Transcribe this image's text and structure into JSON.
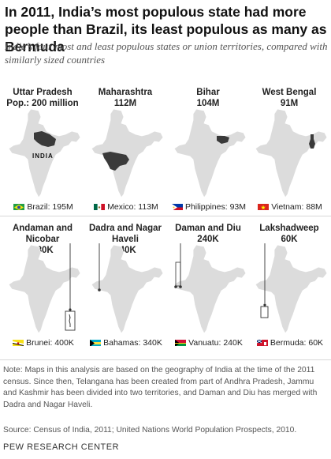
{
  "title": "In 2011, India’s most populous state had more people than Brazil, its least populous as many as Bermuda",
  "subtitle": "India’s four most and least populous states or union territories, compared with similarly sized countries",
  "map_country_label": "INDIA",
  "panels": [
    {
      "name": "Uttar Pradesh",
      "pop": "Pop.: 200 million",
      "country": "Brazil",
      "country_pop": "195M",
      "flag": "brazil"
    },
    {
      "name": "Maharashtra",
      "pop": "112M",
      "country": "Mexico",
      "country_pop": "113M",
      "flag": "mexico"
    },
    {
      "name": "Bihar",
      "pop": "104M",
      "country": "Philippines",
      "country_pop": "93M",
      "flag": "philippines"
    },
    {
      "name": "West Bengal",
      "pop": "91M",
      "country": "Vietnam",
      "country_pop": "88M",
      "flag": "vietnam"
    },
    {
      "name": "Andaman and Nicobar",
      "pop": "380K",
      "country": "Brunei",
      "country_pop": "400K",
      "flag": "brunei"
    },
    {
      "name": "Dadra and Nagar Haveli",
      "pop": "340K",
      "country": "Bahamas",
      "country_pop": "340K",
      "flag": "bahamas"
    },
    {
      "name": "Daman and Diu",
      "pop": "240K",
      "country": "Vanuatu",
      "country_pop": "240K",
      "flag": "vanuatu"
    },
    {
      "name": "Lakshadweep",
      "pop": "60K",
      "country": "Bermuda",
      "country_pop": "60K",
      "flag": "bermuda"
    }
  ],
  "note": "Note: Maps in this analysis are based on the geography of India at the time of the 2011 census. Since then, Telangana has been created from part of Andhra Pradesh, Jammu and Kashmir has been divided into two territories, and Daman and Diu has merged with Dadra and Nagar Haveli.",
  "source": "Source: Census of India, 2011; United Nations World Population Prospects, 2010.",
  "brand": "PEW RESEARCH CENTER",
  "colors": {
    "map_fill": "#dcdcdc",
    "map_stroke": "#ffffff",
    "highlight": "#3a3a3a",
    "text": "#222222",
    "note": "#555555"
  }
}
